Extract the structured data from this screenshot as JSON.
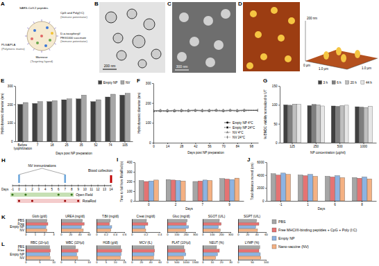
{
  "panels": [
    "A",
    "B",
    "C",
    "D",
    "E",
    "F",
    "G",
    "H",
    "I",
    "J",
    "K",
    "L"
  ],
  "diagram_a": {
    "labels": [
      {
        "lines": [
          "SARS-CoV-2 peptides"
        ]
      },
      {
        "lines": [
          "CpG and Poly(I:C)",
          "(Immune potentiator)"
        ]
      },
      {
        "lines": [
          "PLGA/PLA",
          "(Polymeric matrix)"
        ]
      },
      {
        "lines": [
          "D-α-tocopheryl/",
          "PEG1000 succinate",
          "(Immune potentiator)"
        ]
      },
      {
        "lines": [
          "Mannose",
          "(Targeting ligand)"
        ]
      }
    ]
  },
  "image_b": {
    "scale_bar": "200 nm"
  },
  "image_c": {
    "scale_bar": "300 nm"
  },
  "image_d": {
    "labels": [
      "200 nm",
      "1.0 µm",
      "1.0 µm",
      "0 µm"
    ]
  },
  "diagram_h": {
    "axis_label": "Days",
    "days": [
      -1,
      0,
      1,
      2,
      3,
      4,
      5,
      6,
      7,
      8,
      9,
      10,
      11,
      12,
      13,
      14
    ],
    "immunizations": {
      "label": "NV immunizations",
      "days": [
        0,
        7
      ]
    },
    "open_field": {
      "label": "Open Field",
      "days": [
        -1,
        1,
        6,
        8
      ]
    },
    "rotarod": {
      "label": "RotaRod",
      "days": [
        0,
        2,
        7,
        9
      ]
    },
    "blood_collection": {
      "label": "Blood collection",
      "days": [
        14
      ]
    }
  },
  "shared_legend": [
    {
      "name": "PBS",
      "color": "#a6a6a6"
    },
    {
      "name": "Free MHCI/II-binding peptides + CpG + Poly (I:C)",
      "color": "#e57373"
    },
    {
      "name": "Empty NP",
      "color": "#8db3e2"
    },
    {
      "name": "Nano-vaccine (NV)",
      "color": "#f4b183"
    }
  ],
  "chart_data": [
    {
      "type": "bar",
      "x_label": "Days post NP preparation",
      "y_label": "Hydrodynamic diameter (nm)",
      "categories": [
        "Before lyophilization",
        "7",
        "18",
        "25",
        "35",
        "52",
        "74",
        "105"
      ],
      "series": [
        {
          "name": "Empty NP",
          "color": "#404040",
          "values": [
            200,
            205,
            215,
            225,
            230,
            215,
            240,
            250
          ]
        },
        {
          "name": "NV",
          "color": "#a6a6a6",
          "values": [
            210,
            215,
            220,
            230,
            250,
            225,
            255,
            260
          ]
        }
      ],
      "ylim": [
        0,
        300
      ],
      "yticks": [
        0,
        100,
        200,
        300
      ],
      "legend": "top-right"
    },
    {
      "type": "line",
      "x_label": "Days post NP preparation",
      "y_label": "Hydrodynamic diameter (nm)",
      "x": [
        0,
        7,
        14,
        21,
        28,
        35,
        42,
        49,
        56,
        63,
        70,
        77,
        84,
        91,
        105
      ],
      "xlim": [
        0,
        105
      ],
      "xticks": [
        0,
        14,
        28,
        42,
        56,
        70,
        84,
        98
      ],
      "ylim": [
        0,
        300
      ],
      "yticks": [
        0,
        100,
        200,
        300
      ],
      "legend": "bottom-right",
      "series": [
        {
          "name": "Empty NP 4°C",
          "color": "#000000",
          "marker": "circle",
          "line_style": "solid",
          "values": [
            160,
            161,
            159,
            162,
            160,
            161,
            163,
            160,
            162,
            161,
            160,
            162,
            161,
            163,
            162
          ]
        },
        {
          "name": "Empty NP 24°C",
          "color": "#000000",
          "marker": "square",
          "line_style": "dashed",
          "values": [
            158,
            160,
            161,
            159,
            162,
            160,
            161,
            162,
            160,
            163,
            161,
            162,
            160,
            161,
            163
          ]
        },
        {
          "name": "NV 4°C",
          "color": "#8c8c8c",
          "marker": "triangle",
          "line_style": "solid",
          "values": [
            162,
            163,
            161,
            164,
            162,
            163,
            165,
            162,
            164,
            163,
            162,
            164,
            163,
            165,
            164
          ]
        },
        {
          "name": "NV 24°C",
          "color": "#8c8c8c",
          "marker": "diamond",
          "line_style": "dashed",
          "values": [
            161,
            162,
            163,
            161,
            164,
            162,
            163,
            164,
            162,
            165,
            163,
            164,
            162,
            163,
            165
          ]
        }
      ]
    },
    {
      "type": "bar",
      "x_label": "NP concentration (µg/ml)",
      "y_label": "% BMDC viability normalized to UT",
      "categories": [
        "125",
        "250",
        "500",
        "1000"
      ],
      "series": [
        {
          "name": "3 h",
          "color": "#404040",
          "values": [
            100,
            98,
            97,
            95
          ]
        },
        {
          "name": "6 h",
          "color": "#7f7f7f",
          "values": [
            99,
            101,
            96,
            94
          ]
        },
        {
          "name": "20 h",
          "color": "#bfbfbf",
          "values": [
            102,
            100,
            98,
            93
          ]
        },
        {
          "name": "44 h",
          "color": "#e6e6e6",
          "values": [
            101,
            97,
            99,
            96
          ]
        }
      ],
      "ylim": [
        0,
        150
      ],
      "yticks": [
        0,
        50,
        100,
        150
      ],
      "legend": "top-right"
    },
    {
      "type": "bar",
      "x_label": "Days",
      "y_label": "Time to fall from RotaRod (s)",
      "categories": [
        "0",
        "2",
        "7",
        "9"
      ],
      "series": [
        {
          "values": [
            210,
            220,
            200,
            230
          ]
        },
        {
          "values": [
            200,
            215,
            205,
            225
          ]
        },
        {
          "values": [
            205,
            210,
            215,
            220
          ]
        },
        {
          "values": [
            215,
            205,
            210,
            235
          ]
        }
      ],
      "ylim": [
        0,
        400
      ],
      "yticks": [
        0,
        100,
        200,
        300,
        400
      ]
    },
    {
      "type": "bar",
      "x_label": "Days",
      "y_label": "Total distance moved (cm)",
      "categories": [
        "-1",
        "1",
        "6",
        "8"
      ],
      "series": [
        {
          "values": [
            4200,
            4000,
            3800,
            3600
          ]
        },
        {
          "values": [
            4000,
            3900,
            3700,
            3500
          ]
        },
        {
          "values": [
            4300,
            4100,
            3900,
            3700
          ]
        },
        {
          "values": [
            4100,
            3800,
            3600,
            3400
          ]
        }
      ],
      "ylim": [
        0,
        6000
      ],
      "yticks": [
        0,
        2000,
        4000,
        6000
      ]
    },
    {
      "type": "bar",
      "orientation": "horizontal",
      "title": "Glob (g/dl)",
      "categories": [
        "PBS",
        "Free",
        "Empty NP",
        "NV"
      ],
      "values": [
        2.3,
        2.4,
        2.2,
        2.3
      ],
      "xlim": [
        0,
        3
      ],
      "xticks": [
        0,
        1,
        2,
        3
      ]
    },
    {
      "type": "bar",
      "orientation": "horizontal",
      "title": "UREA (mg/dl)",
      "categories": [
        null,
        null,
        null,
        null
      ],
      "values": [
        46,
        50,
        44,
        48
      ],
      "xlim": [
        0,
        60
      ],
      "xticks": [
        0,
        20,
        40,
        60
      ]
    },
    {
      "type": "bar",
      "orientation": "horizontal",
      "title": "T.Bil (mg/dl)",
      "categories": [
        null,
        null,
        null,
        null
      ],
      "values": [
        0.3,
        0.28,
        0.33,
        0.31
      ],
      "xlim": [
        0,
        0.6
      ],
      "xticks": [
        0,
        0.2,
        0.4,
        0.6
      ]
    },
    {
      "type": "bar",
      "orientation": "horizontal",
      "title": "Creat (mg/dl)",
      "categories": [
        null,
        null,
        null,
        null
      ],
      "values": [
        0.21,
        0.23,
        0.19,
        0.2
      ],
      "xlim": [
        0,
        0.4
      ],
      "xticks": [
        0,
        0.2,
        0.4
      ]
    },
    {
      "type": "bar",
      "orientation": "horizontal",
      "title": "Gluc (mg/dl)",
      "categories": [
        null,
        null,
        null,
        null
      ],
      "values": [
        215,
        205,
        230,
        200
      ],
      "xlim": [
        0,
        300
      ],
      "xticks": [
        0,
        100,
        200,
        300
      ]
    },
    {
      "type": "bar",
      "orientation": "horizontal",
      "title": "SGOT (U/L)",
      "categories": [
        null,
        null,
        null,
        null
      ],
      "values": [
        180,
        200,
        170,
        190
      ],
      "xlim": [
        0,
        300
      ],
      "xticks": [
        0,
        100,
        200,
        300
      ]
    },
    {
      "type": "bar",
      "orientation": "horizontal",
      "title": "SGPT (U/L)",
      "categories": [
        null,
        null,
        null,
        null
      ],
      "values": [
        40,
        45,
        38,
        42
      ],
      "xlim": [
        0,
        60
      ],
      "xticks": [
        0,
        20,
        40,
        60
      ]
    },
    {
      "type": "bar",
      "orientation": "horizontal",
      "title": "RBC (10⁶/µl)",
      "categories": [
        "PBS",
        "Free",
        "Empty NP",
        "NV"
      ],
      "values": [
        8.6,
        8.9,
        8.7,
        8.8
      ],
      "xlim": [
        0,
        10
      ],
      "xticks": [
        0,
        5,
        10
      ]
    },
    {
      "type": "bar",
      "orientation": "horizontal",
      "title": "WBC (10³/µl)",
      "categories": [
        null,
        null,
        null,
        null
      ],
      "values": [
        5.2,
        6.1,
        5.6,
        6.0
      ],
      "xlim": [
        0,
        10
      ],
      "xticks": [
        0,
        5,
        10
      ]
    },
    {
      "type": "bar",
      "orientation": "horizontal",
      "title": "HGB (g/dl)",
      "categories": [
        null,
        null,
        null,
        null
      ],
      "values": [
        13.1,
        13.6,
        13.3,
        13.0
      ],
      "xlim": [
        0,
        15
      ],
      "xticks": [
        0,
        5,
        10,
        15
      ]
    },
    {
      "type": "bar",
      "orientation": "horizontal",
      "title": "MCV (fL)",
      "categories": [
        null,
        null,
        null,
        null
      ],
      "values": [
        48,
        49,
        48,
        47
      ],
      "xlim": [
        0,
        60
      ],
      "xticks": [
        0,
        20,
        40,
        60
      ]
    },
    {
      "type": "bar",
      "orientation": "horizontal",
      "title": "PLAT (10³/µl)",
      "categories": [
        null,
        null,
        null,
        null
      ],
      "values": [
        900,
        950,
        1000,
        880
      ],
      "xlim": [
        0,
        1500
      ],
      "xticks": [
        0,
        500,
        1000,
        1500
      ]
    },
    {
      "type": "bar",
      "orientation": "horizontal",
      "title": "NEUT (%)",
      "categories": [
        null,
        null,
        null,
        null
      ],
      "values": [
        15,
        18,
        16,
        14
      ],
      "xlim": [
        0,
        30
      ],
      "xticks": [
        0,
        10,
        20,
        30
      ]
    },
    {
      "type": "bar",
      "orientation": "horizontal",
      "title": "LYMP (%)",
      "categories": [
        null,
        null,
        null,
        null
      ],
      "values": [
        78,
        75,
        80,
        82
      ],
      "xlim": [
        0,
        100
      ],
      "xticks": [
        0,
        50,
        100
      ]
    }
  ]
}
